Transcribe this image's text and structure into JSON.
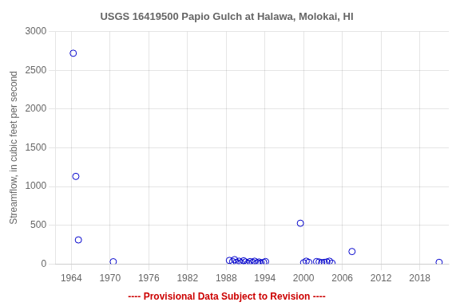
{
  "chart_data": {
    "type": "scatter",
    "title": "USGS 16419500 Papio Gulch at Halawa, Molokai, HI",
    "ylabel": "Streamflow, in cubic feet per second",
    "annotations": [
      {
        "text": "---- Provisional Data Subject to Revision ----",
        "color": "#cc0000"
      }
    ],
    "x": [
      1964.3,
      1964.7,
      1965.1,
      1970.5,
      1988.5,
      1989.0,
      1989.3,
      1989.6,
      1990.0,
      1990.3,
      1990.7,
      1991.0,
      1991.4,
      1991.7,
      1992.1,
      1992.4,
      1992.8,
      1993.1,
      1993.4,
      1993.8,
      1994.1,
      1999.5,
      2000.0,
      2000.4,
      2000.8,
      2002.0,
      2002.4,
      2002.8,
      2003.2,
      2003.6,
      2004.0,
      2004.4,
      2007.5,
      2021.0
    ],
    "values": [
      2720,
      1130,
      310,
      28,
      45,
      30,
      55,
      20,
      35,
      15,
      40,
      25,
      10,
      30,
      20,
      35,
      15,
      25,
      10,
      20,
      30,
      525,
      15,
      35,
      20,
      30,
      25,
      15,
      20,
      25,
      35,
      10,
      160,
      20
    ],
    "color": "#0000cc",
    "marker": "circle",
    "xlim": [
      1961.5,
      2022.5
    ],
    "ylim": [
      0,
      3000
    ],
    "xticks": [
      1964,
      1970,
      1976,
      1982,
      1988,
      1994,
      2000,
      2006,
      2012,
      2018
    ],
    "yticks": [
      0,
      500,
      1000,
      1500,
      2000,
      2500,
      3000
    ],
    "grid": true
  }
}
